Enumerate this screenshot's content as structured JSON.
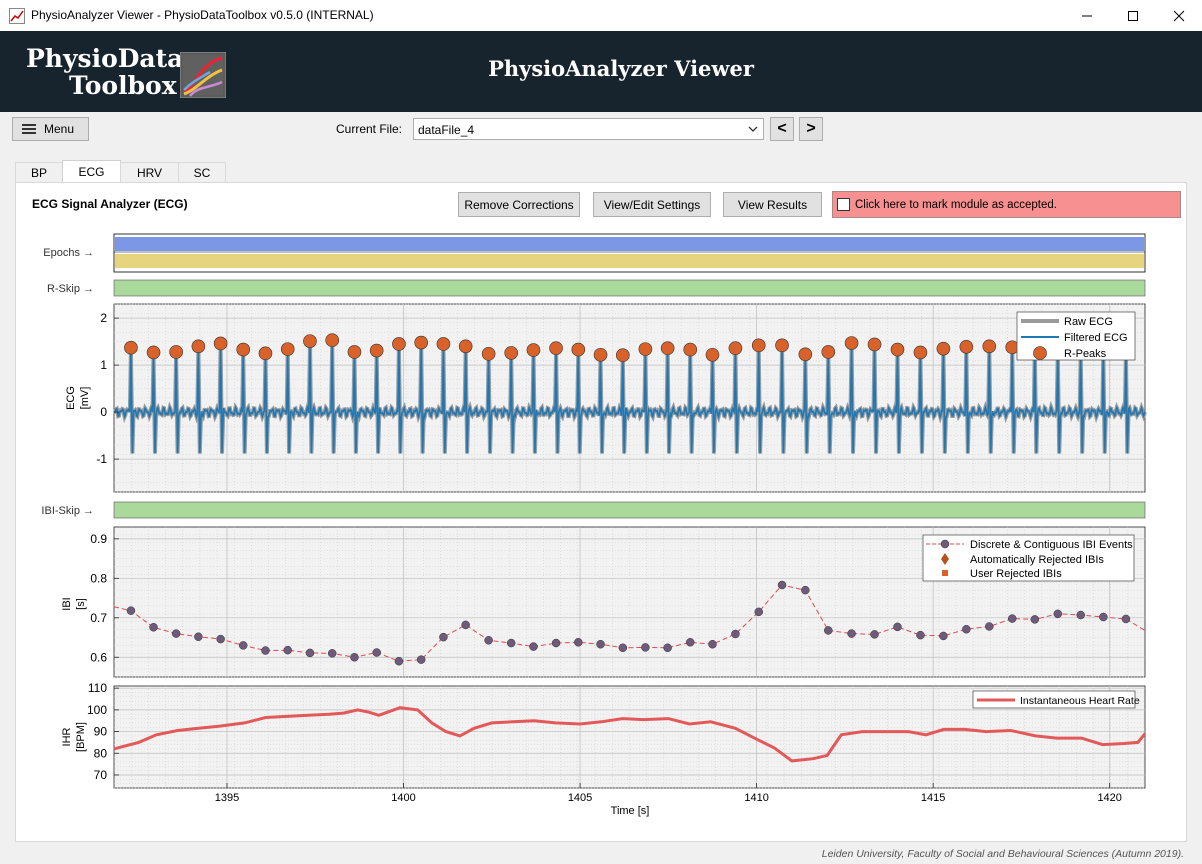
{
  "window": {
    "title": "PhysioAnalyzer Viewer  -  PhysioDataToolbox v0.5.0 (INTERNAL)"
  },
  "header": {
    "logo_line1": "PhysioData",
    "logo_line2": "Toolbox",
    "title": "PhysioAnalyzer Viewer"
  },
  "toolbar": {
    "menu_label": "Menu",
    "current_file_label": "Current File:",
    "current_file": "dataFile_4",
    "prev_label": "<",
    "next_label": ">"
  },
  "tabs": [
    {
      "label": "BP"
    },
    {
      "label": "ECG"
    },
    {
      "label": "HRV"
    },
    {
      "label": "SC"
    }
  ],
  "active_tab": "ECG",
  "panel": {
    "title": "ECG Signal Analyzer (ECG)",
    "remove_corrections": "Remove Corrections",
    "view_edit_settings": "View/Edit Settings",
    "view_results": "View Results",
    "accept_label": "Click here to mark module as accepted."
  },
  "tracks": {
    "epochs": "Epochs →",
    "rskip": "R-Skip →",
    "ibiskip": "IBI-Skip →"
  },
  "colors": {
    "accent_header": "#17242e",
    "epoch_blue": "#7b97e6",
    "epoch_yellow": "#e6d57e",
    "skip_green": "#abd89b",
    "ecg_filtered": "#1f77b4",
    "ecg_raw": "#999999",
    "rpeak": "#d9622b",
    "ibi_marker": "#6e5a7a",
    "ibi_line": "#e24a4a",
    "ihr_line": "#e35959",
    "accept_bg": "#f79090"
  },
  "chart_data": [
    {
      "type": "line",
      "name": "ecg",
      "ylabel": "ECG",
      "yunit": "[mV]",
      "xlim": [
        1391.8,
        1421.0
      ],
      "ylim": [
        -1.7,
        2.3
      ],
      "yticks": [
        2,
        1,
        0,
        -1
      ],
      "ytick_labels": [
        "2",
        "1",
        "0",
        "-1"
      ],
      "legend": [
        "Raw ECG",
        "Filtered ECG",
        "R-Peaks"
      ],
      "rpeaks_x": [
        1392.28,
        1392.92,
        1393.56,
        1394.19,
        1394.82,
        1395.46,
        1396.09,
        1396.72,
        1397.35,
        1397.98,
        1398.61,
        1399.24,
        1399.87,
        1400.5,
        1401.13,
        1401.76,
        1402.41,
        1403.05,
        1403.68,
        1404.32,
        1404.95,
        1405.58,
        1406.21,
        1406.85,
        1407.48,
        1408.12,
        1408.75,
        1409.4,
        1410.06,
        1410.72,
        1411.38,
        1412.03,
        1412.69,
        1413.34,
        1413.99,
        1414.64,
        1415.29,
        1415.94,
        1416.59,
        1417.24,
        1417.88,
        1418.53,
        1419.18,
        1419.82,
        1420.46
      ],
      "rpeaks_y": [
        1.37,
        1.27,
        1.28,
        1.4,
        1.46,
        1.33,
        1.25,
        1.34,
        1.51,
        1.53,
        1.28,
        1.31,
        1.45,
        1.48,
        1.45,
        1.4,
        1.24,
        1.26,
        1.32,
        1.36,
        1.33,
        1.22,
        1.21,
        1.34,
        1.36,
        1.33,
        1.22,
        1.36,
        1.42,
        1.42,
        1.23,
        1.28,
        1.47,
        1.44,
        1.33,
        1.27,
        1.35,
        1.39,
        1.4,
        1.38,
        1.41,
        1.34,
        1.29,
        1.33,
        1.31
      ],
      "trough_y": -0.88
    },
    {
      "type": "line",
      "name": "ibi",
      "ylabel": "IBI",
      "yunit": "[s]",
      "xlim": [
        1391.8,
        1421.0
      ],
      "ylim": [
        0.55,
        0.93
      ],
      "yticks": [
        0.9,
        0.8,
        0.7,
        0.6
      ],
      "ytick_labels": [
        "0.9",
        "0.8",
        "0.7",
        "0.6"
      ],
      "legend": [
        "Discrete & Contiguous IBI Events",
        "Automatically Rejected IBIs",
        "User Rejected IBIs"
      ],
      "x": [
        1392.28,
        1392.92,
        1393.56,
        1394.19,
        1394.82,
        1395.46,
        1396.09,
        1396.72,
        1397.35,
        1397.98,
        1398.61,
        1399.24,
        1399.87,
        1400.5,
        1401.13,
        1401.76,
        1402.41,
        1403.05,
        1403.68,
        1404.32,
        1404.95,
        1405.58,
        1406.21,
        1406.85,
        1407.48,
        1408.12,
        1408.75,
        1409.4,
        1410.06,
        1410.72,
        1411.38,
        1412.03,
        1412.69,
        1413.34,
        1413.99,
        1414.64,
        1415.29,
        1415.94,
        1416.59,
        1417.24,
        1417.88,
        1418.53,
        1419.18,
        1419.82,
        1420.46
      ],
      "y": [
        0.718,
        0.676,
        0.66,
        0.652,
        0.646,
        0.63,
        0.617,
        0.618,
        0.611,
        0.61,
        0.6,
        0.612,
        0.59,
        0.594,
        0.651,
        0.682,
        0.643,
        0.636,
        0.627,
        0.636,
        0.638,
        0.633,
        0.624,
        0.625,
        0.624,
        0.638,
        0.633,
        0.659,
        0.715,
        0.783,
        0.77,
        0.668,
        0.66,
        0.658,
        0.677,
        0.656,
        0.654,
        0.671,
        0.678,
        0.698,
        0.696,
        0.71,
        0.707,
        0.702,
        0.697
      ],
      "x_start": 1391.8,
      "y_start": 0.728,
      "x_end": 1421.0,
      "y_end": 0.668
    },
    {
      "type": "line",
      "name": "ihr",
      "ylabel": "IHR",
      "yunit": "[BPM]",
      "xlabel": "Time [s]",
      "xlim": [
        1391.8,
        1421.0
      ],
      "ylim": [
        64,
        111
      ],
      "yticks": [
        110,
        100,
        90,
        80,
        70
      ],
      "ytick_labels": [
        "110",
        "100",
        "90",
        "80",
        "70"
      ],
      "xticks": [
        1395,
        1400,
        1405,
        1410,
        1415,
        1420
      ],
      "xtick_labels": [
        "1395",
        "1400",
        "1405",
        "1410",
        "1415",
        "1420"
      ],
      "legend": [
        "Instantaneous Heart Rate"
      ],
      "x": [
        1391.8,
        1392.5,
        1393.0,
        1393.6,
        1394.2,
        1394.8,
        1395.5,
        1396.1,
        1396.7,
        1397.3,
        1397.9,
        1398.3,
        1398.7,
        1399.0,
        1399.3,
        1399.9,
        1400.4,
        1400.8,
        1401.2,
        1401.6,
        1402.0,
        1402.5,
        1403.1,
        1403.7,
        1404.3,
        1405.0,
        1405.6,
        1406.2,
        1406.8,
        1407.5,
        1408.1,
        1408.7,
        1409.4,
        1410.0,
        1410.5,
        1411.0,
        1411.6,
        1412.0,
        1412.4,
        1413.0,
        1413.7,
        1414.3,
        1414.8,
        1415.3,
        1415.9,
        1416.5,
        1417.2,
        1417.9,
        1418.5,
        1419.2,
        1419.8,
        1420.4,
        1420.8,
        1421.0
      ],
      "y": [
        82.0,
        85.0,
        88.5,
        90.5,
        91.5,
        92.5,
        94.0,
        96.5,
        97.0,
        97.5,
        98.0,
        98.5,
        100.0,
        99.0,
        97.5,
        101.0,
        100.0,
        94.0,
        90.0,
        88.0,
        91.5,
        94.0,
        94.5,
        95.0,
        94.0,
        93.5,
        94.5,
        96.0,
        95.5,
        96.0,
        93.5,
        94.5,
        91.5,
        86.5,
        82.5,
        76.5,
        77.5,
        79.0,
        88.5,
        90.0,
        90.0,
        90.0,
        88.5,
        91.0,
        91.0,
        90.0,
        90.5,
        88.0,
        87.0,
        87.0,
        84.0,
        84.5,
        85.0,
        89.0
      ]
    }
  ],
  "footer": "Leiden University, Faculty of Social and Behavioural Sciences (Autumn 2019)."
}
